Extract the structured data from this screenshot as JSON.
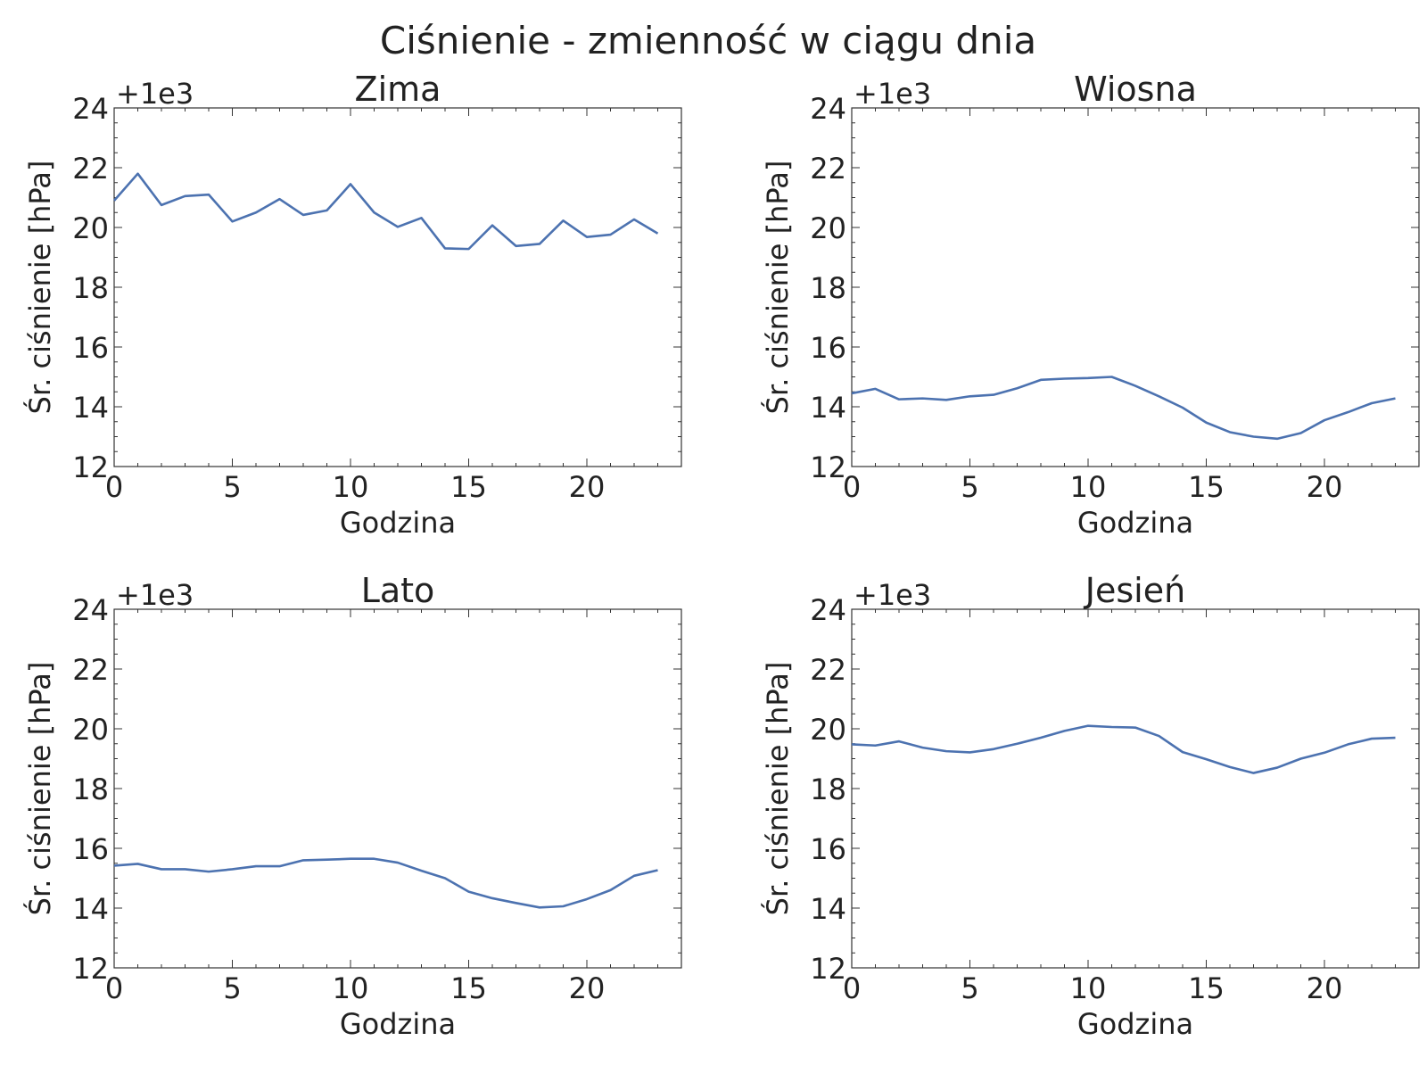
{
  "figure": {
    "title": "Ciśnienie - zmienność w ciągu dnia"
  },
  "chart_data": [
    {
      "type": "line",
      "title": "Zima",
      "xlabel": "Godzina",
      "ylabel": "Śr. ciśnienie [hPa]",
      "offset_label": "+1e3",
      "xlim": [
        0,
        24
      ],
      "ylim": [
        12,
        24
      ],
      "xticks": [
        0,
        5,
        10,
        15,
        20
      ],
      "yticks": [
        12,
        14,
        16,
        18,
        20,
        22,
        24
      ],
      "x": [
        0,
        1,
        2,
        3,
        4,
        5,
        6,
        7,
        8,
        9,
        10,
        11,
        12,
        13,
        14,
        15,
        16,
        17,
        18,
        19,
        20,
        21,
        22,
        23
      ],
      "series": [
        {
          "color": "#4c72b0",
          "values": [
            20.9,
            21.8,
            20.75,
            21.05,
            21.1,
            20.2,
            20.5,
            20.95,
            20.42,
            20.57,
            21.45,
            20.5,
            20.02,
            20.32,
            19.3,
            19.28,
            20.07,
            19.38,
            19.45,
            20.23,
            19.68,
            19.76,
            20.27,
            19.8
          ]
        }
      ]
    },
    {
      "type": "line",
      "title": "Wiosna",
      "xlabel": "Godzina",
      "ylabel": "Śr. ciśnienie [hPa]",
      "offset_label": "+1e3",
      "xlim": [
        0,
        24
      ],
      "ylim": [
        12,
        24
      ],
      "xticks": [
        0,
        5,
        10,
        15,
        20
      ],
      "yticks": [
        12,
        14,
        16,
        18,
        20,
        22,
        24
      ],
      "x": [
        0,
        1,
        2,
        3,
        4,
        5,
        6,
        7,
        8,
        9,
        10,
        11,
        12,
        13,
        14,
        15,
        16,
        17,
        18,
        19,
        20,
        21,
        22,
        23
      ],
      "series": [
        {
          "color": "#4c72b0",
          "values": [
            14.45,
            14.6,
            14.25,
            14.28,
            14.23,
            14.35,
            14.4,
            14.62,
            14.9,
            14.94,
            14.96,
            15.0,
            14.7,
            14.35,
            13.97,
            13.47,
            13.15,
            13.0,
            12.93,
            13.12,
            13.55,
            13.82,
            14.12,
            14.28
          ]
        }
      ]
    },
    {
      "type": "line",
      "title": "Lato",
      "xlabel": "Godzina",
      "ylabel": "Śr. ciśnienie [hPa]",
      "offset_label": "+1e3",
      "xlim": [
        0,
        24
      ],
      "ylim": [
        12,
        24
      ],
      "xticks": [
        0,
        5,
        10,
        15,
        20
      ],
      "yticks": [
        12,
        14,
        16,
        18,
        20,
        22,
        24
      ],
      "x": [
        0,
        1,
        2,
        3,
        4,
        5,
        6,
        7,
        8,
        9,
        10,
        11,
        12,
        13,
        14,
        15,
        16,
        17,
        18,
        19,
        20,
        21,
        22,
        23
      ],
      "series": [
        {
          "color": "#4c72b0",
          "values": [
            15.42,
            15.48,
            15.3,
            15.3,
            15.22,
            15.3,
            15.4,
            15.4,
            15.6,
            15.62,
            15.65,
            15.65,
            15.52,
            15.25,
            15.0,
            14.55,
            14.33,
            14.17,
            14.02,
            14.06,
            14.3,
            14.6,
            15.08,
            15.27
          ]
        }
      ]
    },
    {
      "type": "line",
      "title": "Jesień",
      "xlabel": "Godzina",
      "ylabel": "Śr. ciśnienie [hPa]",
      "offset_label": "+1e3",
      "xlim": [
        0,
        24
      ],
      "ylim": [
        12,
        24
      ],
      "xticks": [
        0,
        5,
        10,
        15,
        20
      ],
      "yticks": [
        12,
        14,
        16,
        18,
        20,
        22,
        24
      ],
      "x": [
        0,
        1,
        2,
        3,
        4,
        5,
        6,
        7,
        8,
        9,
        10,
        11,
        12,
        13,
        14,
        15,
        16,
        17,
        18,
        19,
        20,
        21,
        22,
        23
      ],
      "series": [
        {
          "color": "#4c72b0",
          "values": [
            19.48,
            19.44,
            19.58,
            19.37,
            19.25,
            19.21,
            19.32,
            19.5,
            19.7,
            19.93,
            20.1,
            20.06,
            20.04,
            19.76,
            19.22,
            18.98,
            18.72,
            18.52,
            18.7,
            19.0,
            19.2,
            19.48,
            19.67,
            19.7
          ]
        }
      ]
    }
  ]
}
